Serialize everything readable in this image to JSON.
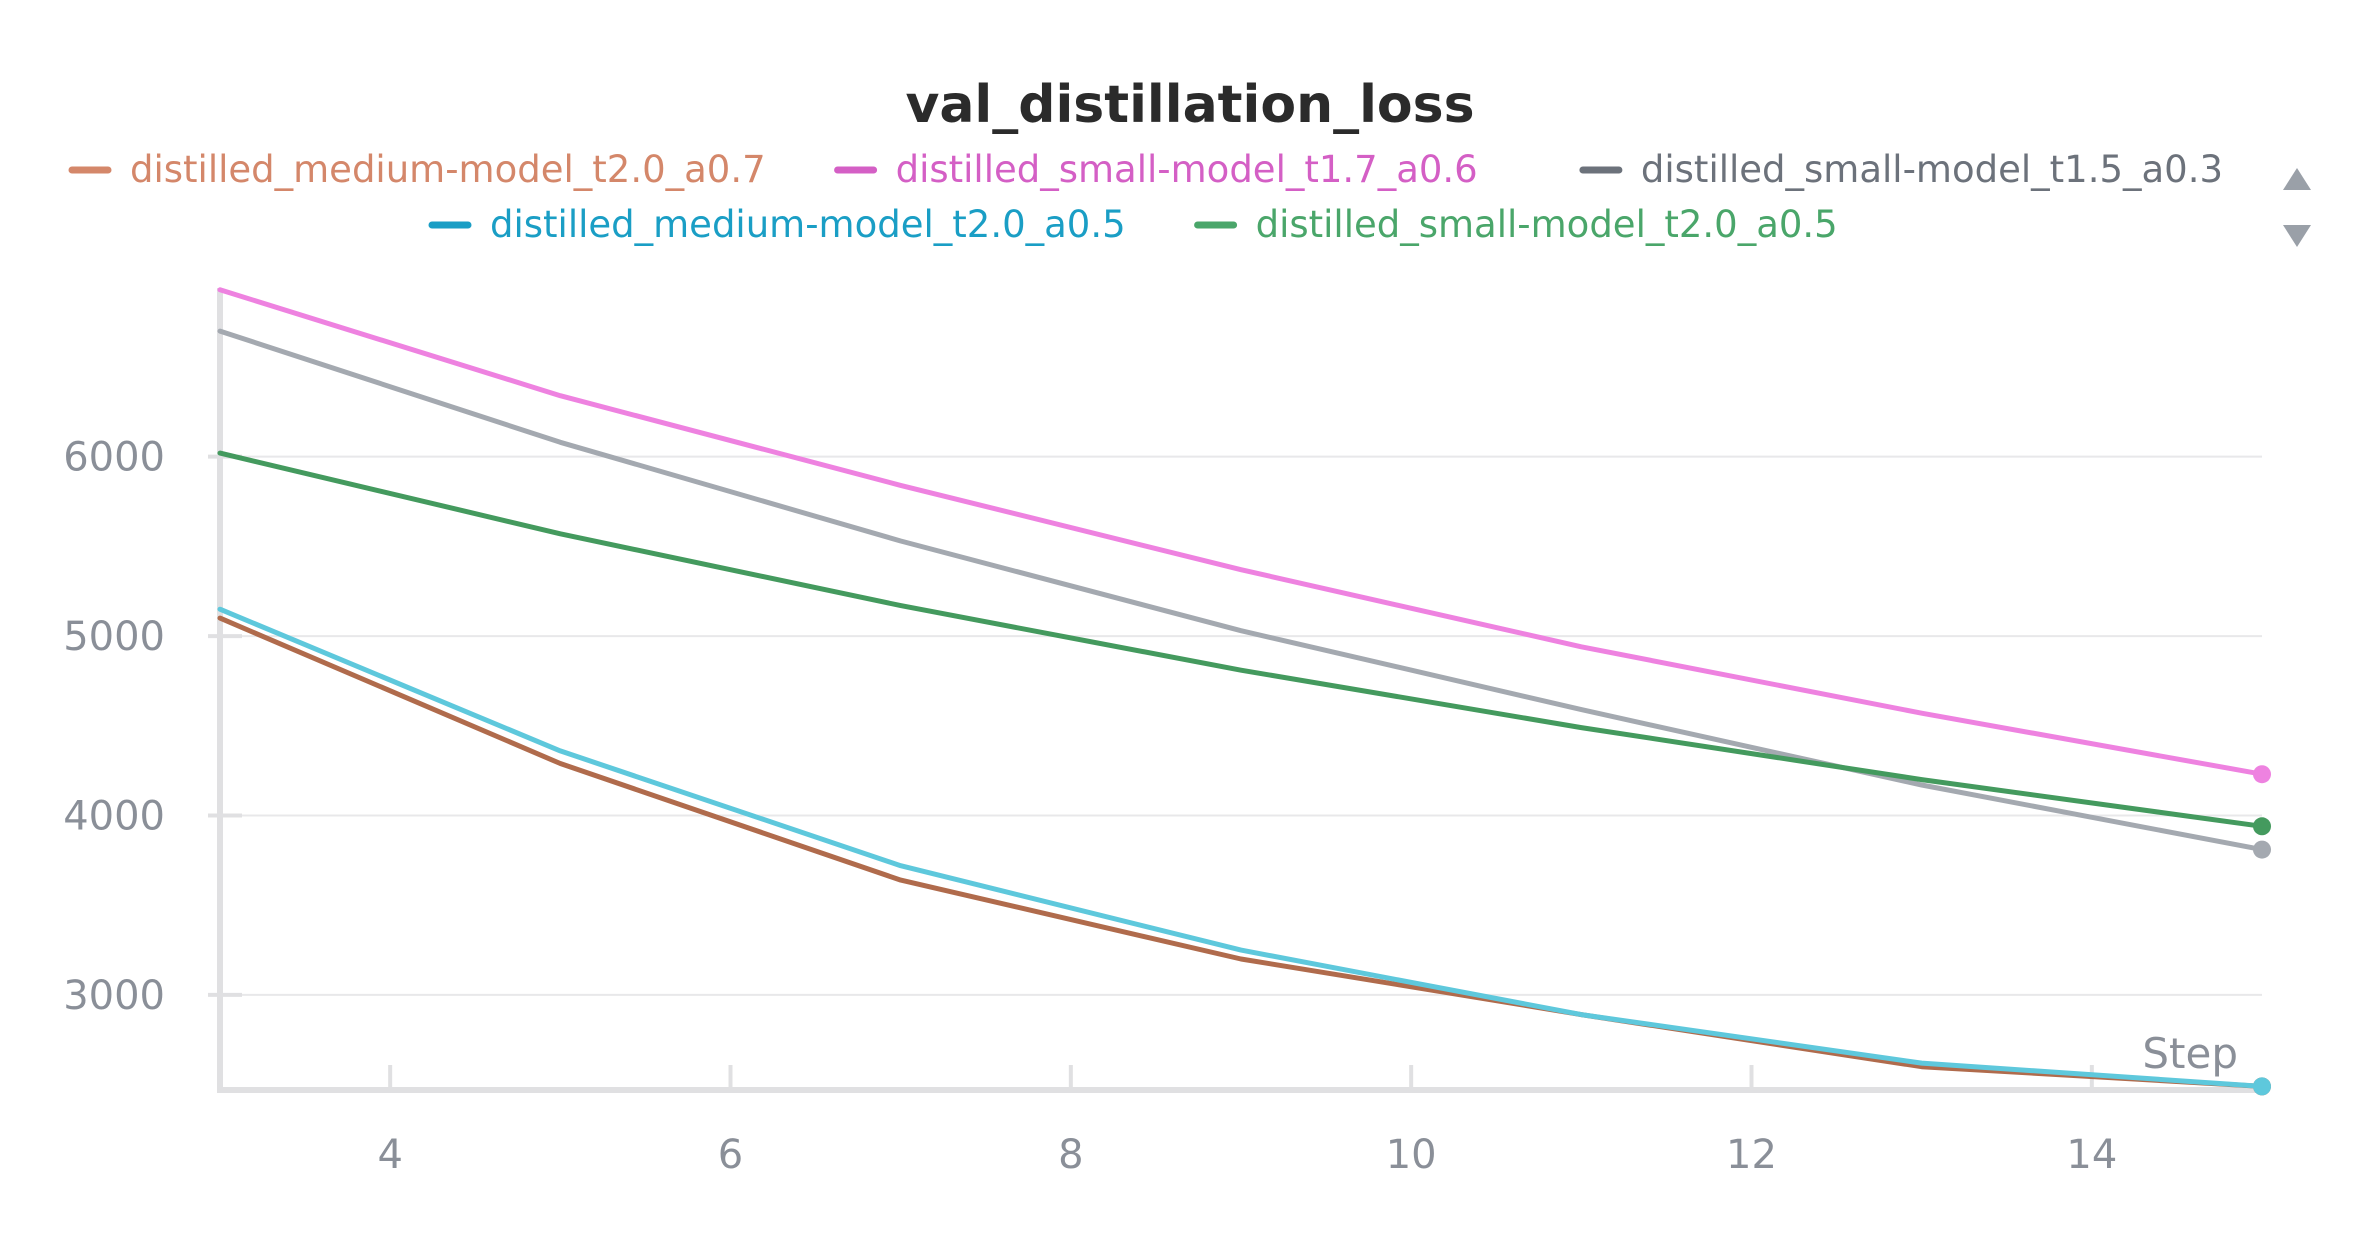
{
  "chart_data": {
    "type": "line",
    "title": "val_distillation_loss",
    "xlabel": "Step",
    "ylabel": "",
    "xlim": [
      3,
      15
    ],
    "ylim": [
      2470,
      6940
    ],
    "xticks": [
      4,
      6,
      8,
      10,
      12,
      14
    ],
    "yticks": [
      3000,
      4000,
      5000,
      6000
    ],
    "grid": true,
    "legend_position": "top",
    "series": [
      {
        "name": "distilled_medium-model_t2.0_a0.7",
        "legend_color": "#d4876a",
        "line_color": "#b06b4c",
        "x": [
          3,
          5,
          7,
          9,
          11,
          13,
          15
        ],
        "y": [
          5100,
          4290,
          3640,
          3200,
          2890,
          2600,
          2490
        ]
      },
      {
        "name": "distilled_small-model_t1.7_a0.6",
        "legend_color": "#d45fc5",
        "line_color": "#ee82e0",
        "x": [
          3,
          5,
          7,
          9,
          11,
          13,
          15
        ],
        "y": [
          6930,
          6340,
          5840,
          5370,
          4940,
          4570,
          4230
        ]
      },
      {
        "name": "distilled_small-model_t1.5_a0.3",
        "legend_color": "#6c727b",
        "line_color": "#a4a9b0",
        "x": [
          3,
          5,
          7,
          9,
          11,
          13,
          15
        ],
        "y": [
          6700,
          6080,
          5530,
          5030,
          4590,
          4170,
          3810
        ]
      },
      {
        "name": "distilled_medium-model_t2.0_a0.5",
        "legend_color": "#1a9ec5",
        "line_color": "#5ec8dc",
        "x": [
          3,
          5,
          7,
          9,
          11,
          13,
          15
        ],
        "y": [
          5150,
          4360,
          3720,
          3250,
          2890,
          2620,
          2490
        ]
      },
      {
        "name": "distilled_small-model_t2.0_a0.5",
        "legend_color": "#4aa66a",
        "line_color": "#449a5e",
        "x": [
          3,
          5,
          7,
          9,
          11,
          13,
          15
        ],
        "y": [
          6020,
          5570,
          5170,
          4810,
          4490,
          4200,
          3940
        ]
      }
    ]
  },
  "icons": {
    "scroll_up": "triangle-up-icon",
    "scroll_down": "triangle-down-icon"
  }
}
